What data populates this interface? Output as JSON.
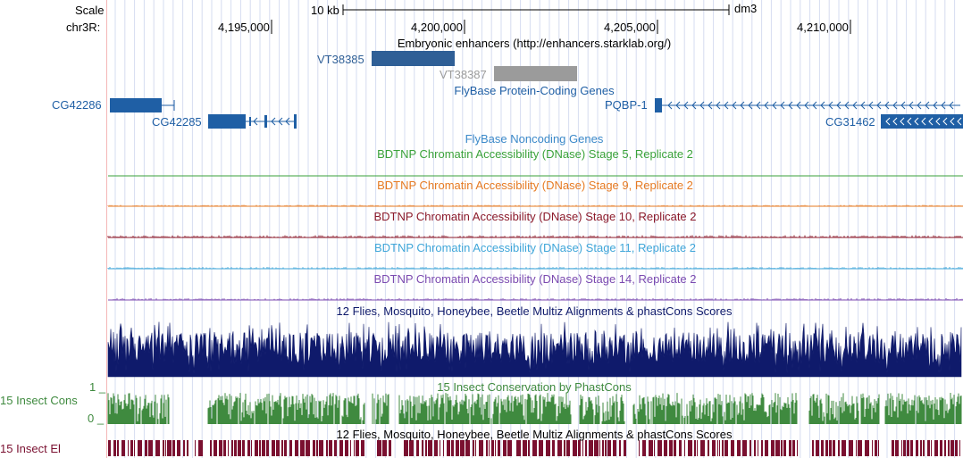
{
  "browser": {
    "assembly": "dm3",
    "scale_label": "Scale",
    "scale_bar_text": "10 kb",
    "chrom_label": "chr3R:",
    "ruler_ticks": [
      "4,195,000",
      "4,200,000",
      "4,205,000",
      "4,210,000"
    ]
  },
  "tracks": {
    "embryonic_enhancers": {
      "title": "Embryonic enhancers (http://enhancers.starklab.org/)",
      "items": [
        "VT38385",
        "VT38387"
      ],
      "colors": [
        "#2f5f96",
        "#9b9b9b"
      ]
    },
    "protein_coding": {
      "title": "FlyBase Protein-Coding Genes",
      "color": "#1f5fa5",
      "genes": [
        "CG42286",
        "CG42285",
        "PQBP-1",
        "CG31462"
      ]
    },
    "noncoding": {
      "title": "FlyBase Noncoding Genes",
      "color": "#3b89c9"
    },
    "dnase": [
      {
        "title": "BDTNP Chromatin Accessibility (DNase) Stage 5, Replicate 2",
        "color": "#3aa23a"
      },
      {
        "title": "BDTNP Chromatin Accessibility (DNase) Stage 9, Replicate 2",
        "color": "#e67a22"
      },
      {
        "title": "BDTNP Chromatin Accessibility (DNase) Stage 10, Replicate 2",
        "color": "#8b1a2b"
      },
      {
        "title": "BDTNP Chromatin Accessibility (DNase) Stage 11, Replicate 2",
        "color": "#3fa6d9"
      },
      {
        "title": "BDTNP Chromatin Accessibility (DNase) Stage 14, Replicate 2",
        "color": "#7b4ab0"
      }
    ],
    "multiz": {
      "title": "12 Flies, Mosquito, Honeybee, Beetle Multiz Alignments & phastCons Scores",
      "color": "#0f1a6b"
    },
    "insect_cons": {
      "title": "15 Insect Conservation by PhastCons",
      "side_label": "15 Insect Cons",
      "max_label": "1 _",
      "min_label": "0 _",
      "color": "#3f8a3f"
    },
    "insect_el": {
      "title": "12 Flies, Mosquito, Honeybee, Beetle Multiz Alignments & phastCons Scores",
      "side_label": "15 Insect El",
      "color": "#7a1030"
    }
  }
}
